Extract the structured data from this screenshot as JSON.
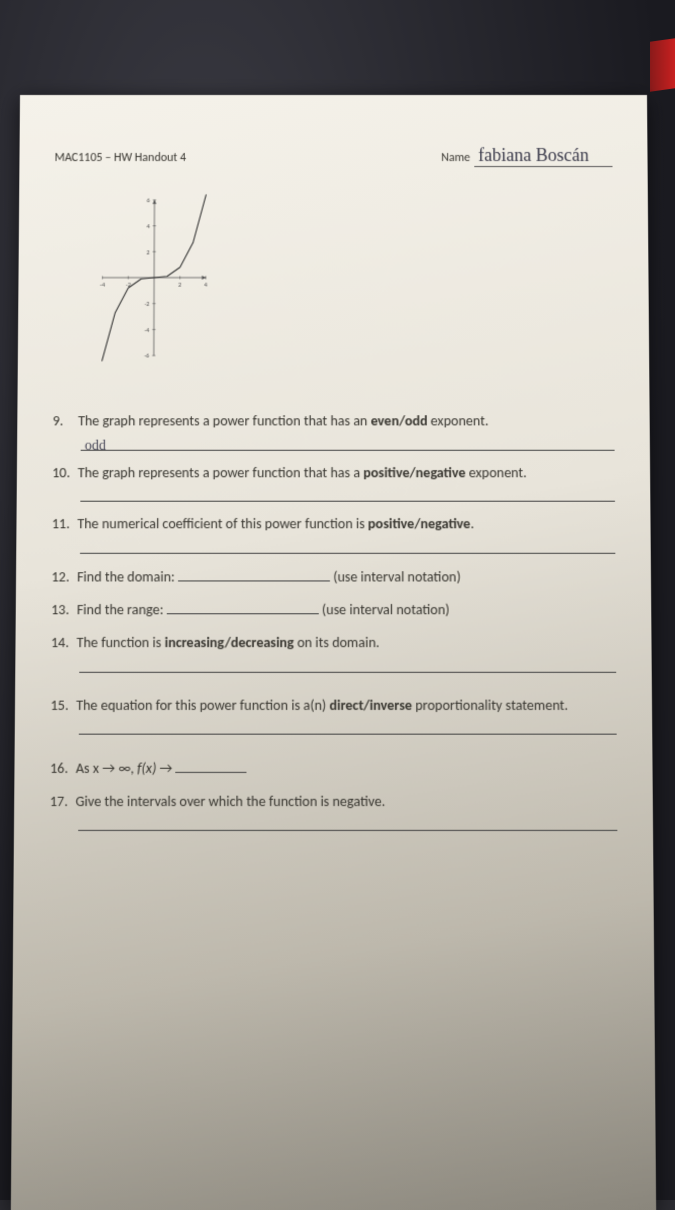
{
  "header": {
    "course": "MAC1105 – HW Handout 4",
    "name_label": "Name",
    "name_value": "fabiana Boscán"
  },
  "graph": {
    "type": "line",
    "axis_color": "#555555",
    "curve_color": "#333333",
    "background": "transparent",
    "xlim": [
      -4,
      4
    ],
    "ylim": [
      -6,
      6
    ],
    "xticks": [
      -4,
      -2,
      2,
      4
    ],
    "yticks": [
      -6,
      -4,
      -2,
      2,
      4,
      6
    ],
    "tick_fontsize": 7,
    "curve_points": [
      [
        -4,
        -6.4
      ],
      [
        -3,
        -2.7
      ],
      [
        -2,
        -0.8
      ],
      [
        -1,
        -0.1
      ],
      [
        0,
        0
      ],
      [
        1,
        0.1
      ],
      [
        2,
        0.8
      ],
      [
        3,
        2.7
      ],
      [
        4,
        6.4
      ]
    ],
    "line_width": 1.2
  },
  "questions": {
    "q9": {
      "num": "9.",
      "text_a": "The graph represents a power function that has an ",
      "bold": "even/odd",
      "text_b": " exponent.",
      "answer": "odd"
    },
    "q10": {
      "num": "10.",
      "text_a": "The graph represents a power function that has a ",
      "bold": "positive/negative",
      "text_b": " exponent."
    },
    "q11": {
      "num": "11.",
      "text_a": "The numerical coefficient of this power function is ",
      "bold": "positive/negative",
      "text_b": "."
    },
    "q12": {
      "num": "12.",
      "text_a": "Find the domain: ",
      "hint": "(use interval notation)"
    },
    "q13": {
      "num": "13.",
      "text_a": "Find the range: ",
      "hint": "(use interval notation)"
    },
    "q14": {
      "num": "14.",
      "text_a": "The function is ",
      "bold": "increasing/decreasing",
      "text_b": " on its domain."
    },
    "q15": {
      "num": "15.",
      "text_a": "The equation for this power function is a(n) ",
      "bold": "direct/inverse",
      "text_b": " proportionality statement."
    },
    "q16": {
      "num": "16.",
      "text_a": "As x → ∞,   ",
      "fx": "f(x)",
      "arrow": " → "
    },
    "q17": {
      "num": "17.",
      "text_a": " Give the intervals over which the function is negative."
    }
  }
}
